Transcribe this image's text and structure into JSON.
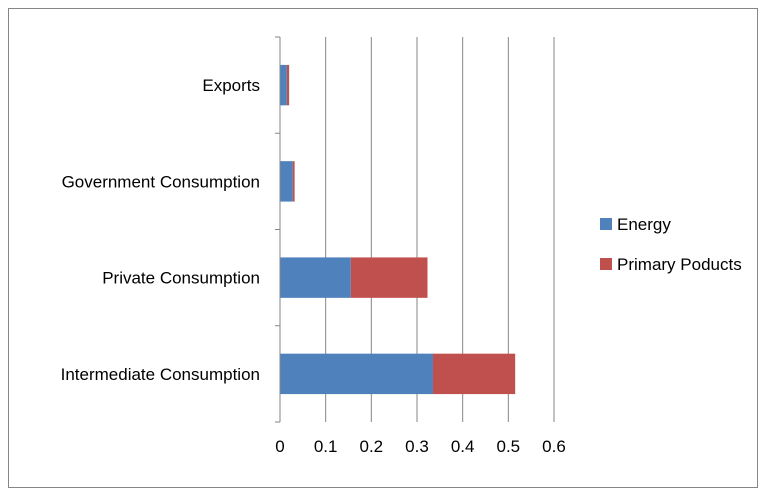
{
  "chart_data": {
    "type": "bar",
    "orientation": "horizontal",
    "stacked": true,
    "categories": [
      "Intermediate Consumption",
      "Private Consumption",
      "Government Consumption",
      "Exports"
    ],
    "series": [
      {
        "name": "Energy",
        "color": "#4F81BD",
        "values": [
          0.335,
          0.155,
          0.028,
          0.015
        ]
      },
      {
        "name": "Primary Poducts",
        "color": "#C0504D",
        "values": [
          0.18,
          0.168,
          0.004,
          0.005
        ]
      }
    ],
    "xlim": [
      0,
      0.6
    ],
    "xticks": [
      "0",
      "0.1",
      "0.2",
      "0.3",
      "0.4",
      "0.5",
      "0.6"
    ],
    "grid": "vertical",
    "legend_position": "right"
  }
}
